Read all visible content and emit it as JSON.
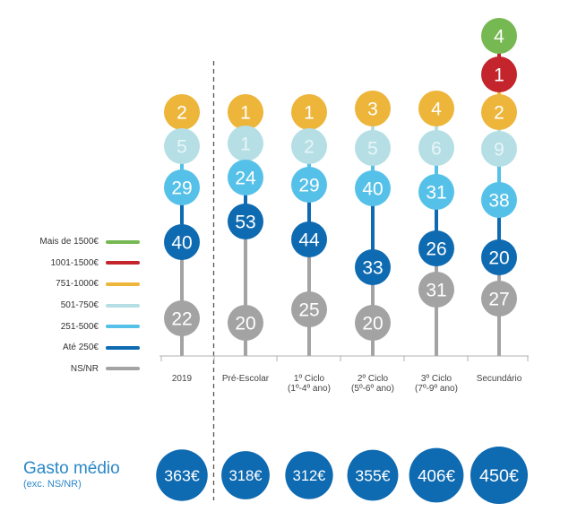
{
  "chart_data": {
    "type": "stacked-dot-column",
    "categories": [
      {
        "lines": [
          "2019"
        ]
      },
      {
        "lines": [
          "Pré-Escolar"
        ]
      },
      {
        "lines": [
          "1º Ciclo",
          "(1º-4º ano)"
        ]
      },
      {
        "lines": [
          "2º Ciclo",
          "(5º-6º ano)"
        ]
      },
      {
        "lines": [
          "3º Ciclo",
          "(7º-9º ano)"
        ]
      },
      {
        "lines": [
          "Secundário"
        ]
      }
    ],
    "series": [
      {
        "name": "Mais de 1500€",
        "color": "#76b952",
        "values": [
          null,
          null,
          null,
          null,
          null,
          4
        ]
      },
      {
        "name": "1001-1500€",
        "color": "#c4242c",
        "values": [
          null,
          null,
          null,
          null,
          null,
          1
        ]
      },
      {
        "name": "751-1000€",
        "color": "#edb53a",
        "values": [
          2,
          1,
          1,
          3,
          4,
          2
        ]
      },
      {
        "name": "501-750€",
        "color": "#b5dfe5",
        "values": [
          5,
          1,
          2,
          5,
          6,
          9
        ]
      },
      {
        "name": "251-500€",
        "color": "#56c1e8",
        "values": [
          29,
          24,
          29,
          40,
          31,
          38
        ]
      },
      {
        "name": "Até 250€",
        "color": "#0e6ab1",
        "values": [
          40,
          53,
          44,
          33,
          26,
          20
        ]
      },
      {
        "name": "NS/NR",
        "color": "#a3a3a3",
        "values": [
          22,
          20,
          25,
          20,
          31,
          27
        ]
      }
    ],
    "average_spend": {
      "title": "Gasto médio",
      "subtitle": "(exc. NS/NR)",
      "values": [
        363,
        318,
        312,
        355,
        406,
        450
      ],
      "labels": [
        "363€",
        "318€",
        "312€",
        "355€",
        "406€",
        "450€"
      ],
      "color": "#0e6ab1"
    },
    "separator_after_category": 0
  }
}
